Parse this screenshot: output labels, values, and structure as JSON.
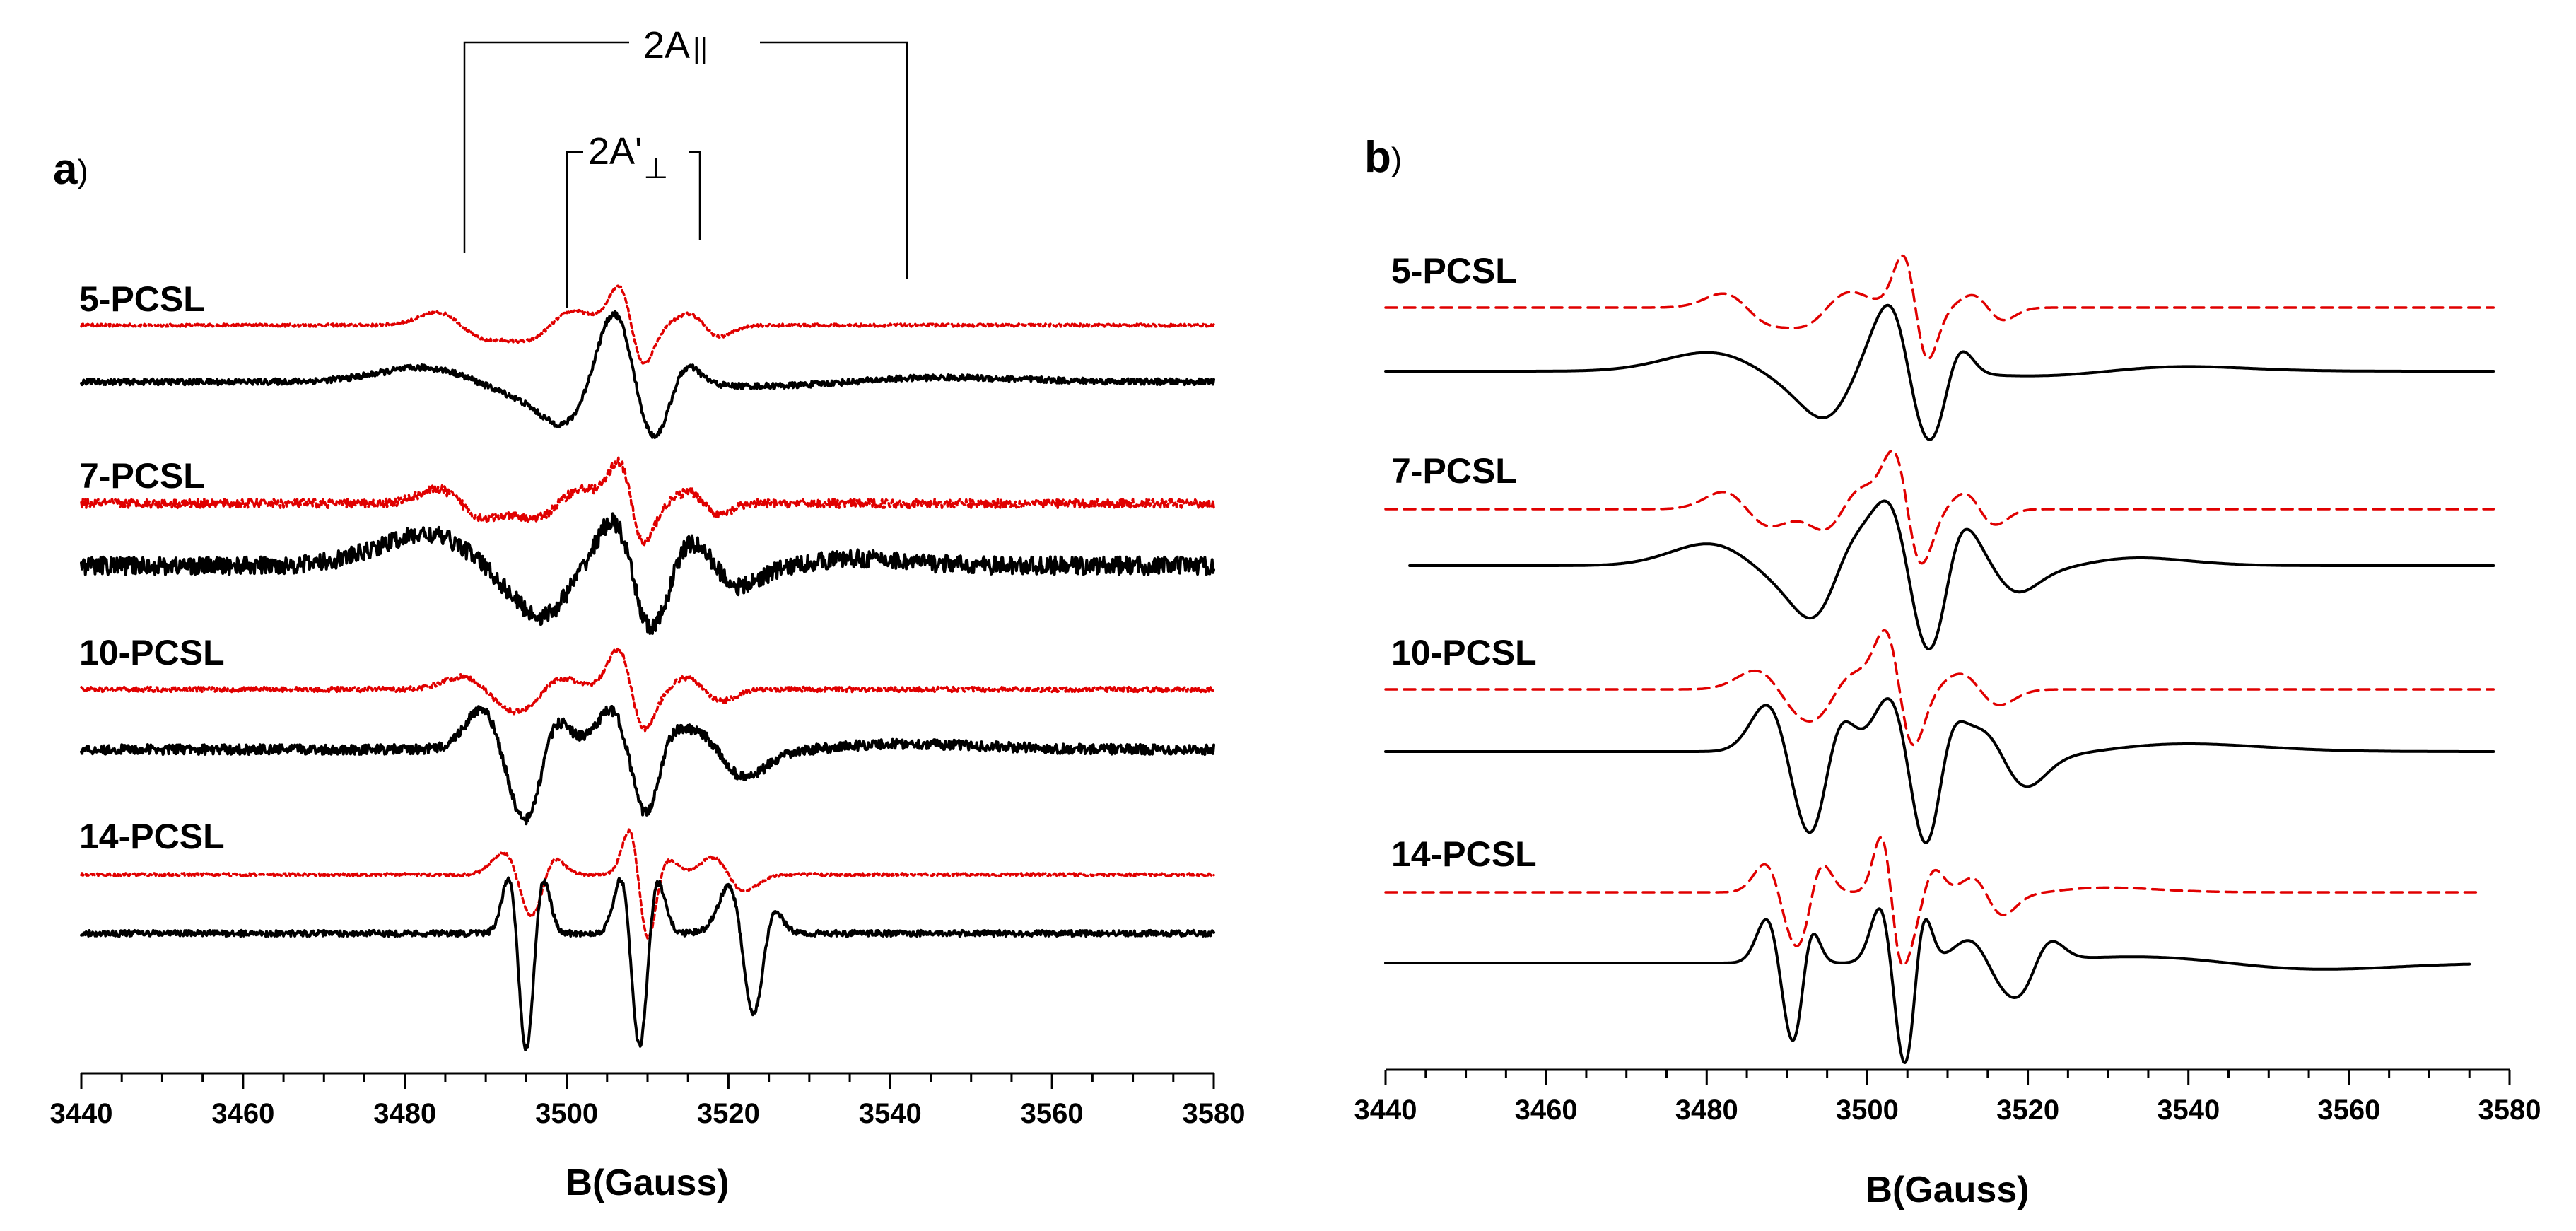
{
  "figure": {
    "dashed_color": "#e00000",
    "solid_color": "#000000"
  },
  "chart_data": [
    {
      "type": "line",
      "panel": "a",
      "panel_label": "a",
      "panel_paren": ")",
      "xlabel": "B(Gauss)",
      "ylabel": "",
      "xlim": [
        3440,
        3580
      ],
      "x_ticks": [
        3440,
        3460,
        3480,
        3500,
        3520,
        3540,
        3560,
        3580
      ],
      "annotations": {
        "a_parallel": {
          "text": "2A",
          "subscript": "||",
          "span_gauss": [
            3487,
            3542
          ]
        },
        "a_perp": {
          "text": "2A'",
          "subscript": "⊥",
          "span_gauss": [
            3500,
            3517
          ]
        }
      },
      "samples": [
        {
          "label": "5-PCSL",
          "noise": 0.03,
          "dashed": {
            "x_range": [
              3440,
              3580
            ],
            "components": [
              [
                3487,
                3.0,
                -0.09
              ],
              [
                3498,
                3.0,
                0.1
              ],
              [
                3508,
                1.6,
                -0.27
              ],
              [
                3517,
                2.0,
                -0.08
              ]
            ]
          },
          "solid": {
            "x_range": [
              3440,
              3580
            ],
            "components": [
              [
                3489,
                7.0,
                -0.1
              ],
              [
                3503,
                3.5,
                0.22
              ],
              [
                3508,
                2.4,
                -0.3
              ],
              [
                3513,
                2.0,
                0.14
              ],
              [
                3535,
                12.0,
                0.03
              ]
            ]
          }
        },
        {
          "label": "7-PCSL",
          "noise": 0.09,
          "dashed": {
            "x_range": [
              3440,
              3580
            ],
            "components": [
              [
                3487,
                3.0,
                -0.1
              ],
              [
                3499,
                3.0,
                0.1
              ],
              [
                3508,
                1.6,
                -0.28
              ],
              [
                3517,
                2.0,
                -0.08
              ]
            ]
          },
          "solid": {
            "x_range": [
              3440,
              3580
            ],
            "components": [
              [
                3490,
                7.5,
                -0.22
              ],
              [
                3500,
                3.5,
                0.14
              ],
              [
                3508,
                2.3,
                -0.3
              ],
              [
                3513,
                2.0,
                0.12
              ],
              [
                3519,
                2.6,
                -0.1
              ],
              [
                3528,
                8.0,
                0.05
              ]
            ]
          }
        },
        {
          "label": "10-PCSL",
          "noise": 0.05,
          "dashed": {
            "x_range": [
              3440,
              3580
            ],
            "components": [
              [
                3490,
                3.0,
                -0.09
              ],
              [
                3497,
                2.5,
                0.08
              ],
              [
                3508,
                1.7,
                -0.28
              ],
              [
                3517,
                2.2,
                -0.08
              ]
            ]
          },
          "solid": {
            "x_range": [
              3440,
              3580
            ],
            "components": [
              [
                3492,
                2.6,
                -0.28
              ],
              [
                3497,
                2.0,
                0.22
              ],
              [
                3508,
                2.5,
                -0.3
              ],
              [
                3511,
                1.8,
                0.18
              ],
              [
                3519,
                3.2,
                -0.16
              ],
              [
                3530,
                12.0,
                0.04
              ]
            ]
          }
        },
        {
          "label": "14-PCSL",
          "noise": 0.03,
          "dashed": {
            "x_range": [
              3440,
              3580
            ],
            "components": [
              [
                3494,
                1.8,
                -0.16
              ],
              [
                3497,
                1.5,
                0.13
              ],
              [
                3509,
                1.2,
                -0.35
              ],
              [
                3511,
                1.5,
                0.12
              ],
              [
                3520,
                2.0,
                -0.12
              ]
            ]
          },
          "solid": {
            "x_range": [
              3440,
              3580
            ],
            "components": [
              [
                3494,
                1.1,
                -0.42
              ],
              [
                3496,
                1.1,
                0.4
              ],
              [
                3508,
                1.2,
                -0.42
              ],
              [
                3510,
                1.2,
                0.4
              ],
              [
                3522,
                1.8,
                -0.36
              ],
              [
                3524,
                1.4,
                0.3
              ]
            ]
          }
        }
      ]
    },
    {
      "type": "line",
      "panel": "b",
      "panel_label": "b",
      "panel_paren": ")",
      "xlabel": "B(Gauss)",
      "ylabel": "",
      "xlim": [
        3440,
        3580
      ],
      "x_ticks": [
        3440,
        3460,
        3480,
        3500,
        3520,
        3540,
        3560,
        3580
      ],
      "samples": [
        {
          "label": "5-PCSL",
          "noise": 0.0,
          "dashed": {
            "x_range": [
              3440,
              3578
            ],
            "components": [
              [
                3485,
                3.0,
                -0.09
              ],
              [
                3495,
                3.0,
                0.1
              ],
              [
                3506,
                1.6,
                -0.33
              ],
              [
                3515,
                2.0,
                -0.08
              ]
            ]
          },
          "solid": {
            "x_range": [
              3440,
              3578
            ],
            "components": [
              [
                3487,
                7.0,
                -0.12
              ],
              [
                3498,
                3.5,
                0.18
              ],
              [
                3505,
                2.3,
                -0.3
              ],
              [
                3510,
                1.8,
                0.16
              ],
              [
                3530,
                10.0,
                0.03
              ]
            ]
          }
        },
        {
          "label": "7-PCSL",
          "noise": 0.0,
          "dashed": {
            "x_range": [
              3440,
              3578
            ],
            "components": [
              [
                3485,
                3.0,
                -0.11
              ],
              [
                3497,
                2.5,
                0.13
              ],
              [
                3505,
                1.8,
                -0.35
              ],
              [
                3514,
                2.0,
                -0.1
              ]
            ]
          },
          "solid": {
            "x_range": [
              3443,
              3578
            ],
            "components": [
              [
                3486,
                6.0,
                -0.14
              ],
              [
                3496,
                3.0,
                0.2
              ],
              [
                3505,
                2.5,
                -0.36
              ],
              [
                3510,
                2.0,
                0.18
              ],
              [
                3516,
                3.0,
                -0.12
              ],
              [
                3526,
                8.0,
                0.05
              ]
            ]
          }
        },
        {
          "label": "10-PCSL",
          "noise": 0.0,
          "dashed": {
            "x_range": [
              3440,
              3578
            ],
            "components": [
              [
                3489,
                3.0,
                -0.12
              ],
              [
                3496,
                2.5,
                0.1
              ],
              [
                3504,
                1.8,
                -0.36
              ],
              [
                3514,
                2.5,
                -0.1
              ]
            ]
          },
          "solid": {
            "x_range": [
              3440,
              3578
            ],
            "components": [
              [
                3490,
                2.6,
                -0.3
              ],
              [
                3495,
                2.0,
                0.22
              ],
              [
                3505,
                2.4,
                -0.36
              ],
              [
                3509,
                1.8,
                0.2
              ],
              [
                3517,
                3.0,
                -0.18
              ],
              [
                3528,
                12.0,
                0.05
              ]
            ]
          }
        },
        {
          "label": "14-PCSL",
          "noise": 0.0,
          "dashed": {
            "x_range": [
              3440,
              3576
            ],
            "components": [
              [
                3489,
                1.8,
                -0.18
              ],
              [
                3493,
                1.5,
                0.18
              ],
              [
                3503,
                1.3,
                -0.36
              ],
              [
                3507,
                1.5,
                0.16
              ],
              [
                3515,
                2.0,
                -0.12
              ],
              [
                3522,
                8.0,
                0.03
              ]
            ]
          },
          "solid": {
            "x_range": [
              3440,
              3575
            ],
            "components": [
              [
                3489,
                1.6,
                -0.28
              ],
              [
                3492,
                1.2,
                0.22
              ],
              [
                3503,
                1.5,
                -0.35
              ],
              [
                3506,
                1.2,
                0.3
              ],
              [
                3515,
                2.5,
                -0.14
              ],
              [
                3521,
                2.0,
                0.12
              ],
              [
                3545,
                12.0,
                -0.04
              ]
            ]
          }
        }
      ]
    }
  ]
}
